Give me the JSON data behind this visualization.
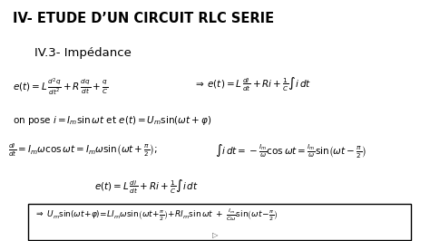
{
  "title_line1": "IV- ETUDE D’UN CIRCUIT RLC SERIE",
  "title_line2": "IV.3- Impédance",
  "title_bg": "#f0eedc",
  "body_bg": "#ffffff",
  "title_color": "#000000",
  "body_color": "#000000",
  "figsize": [
    4.74,
    2.66
  ],
  "dpi": 100
}
